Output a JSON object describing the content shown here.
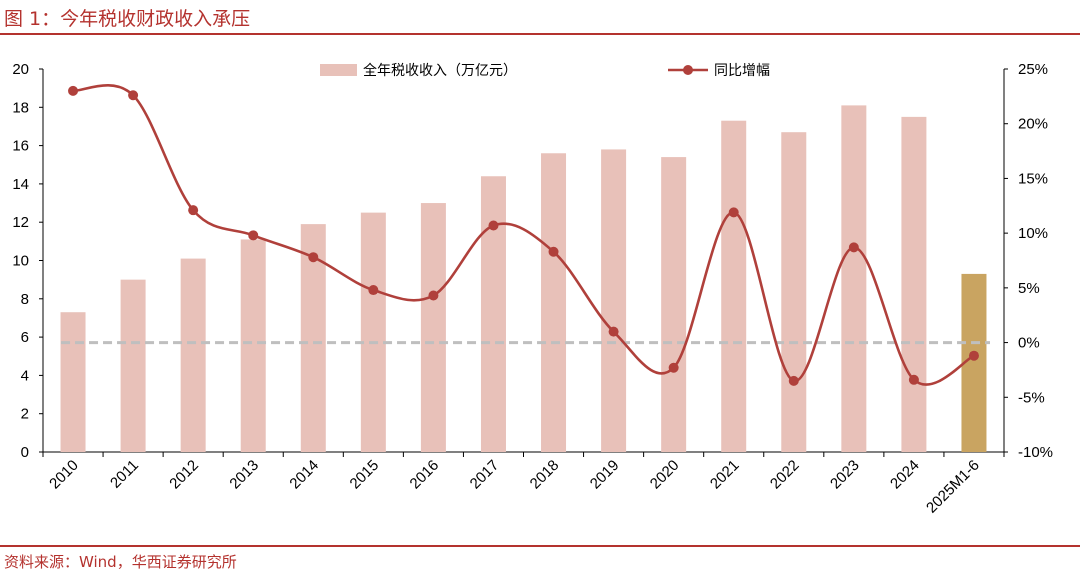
{
  "figure": {
    "title": "图 1：今年税收财政收入承压",
    "source": "资料来源：Wind，华西证券研究所"
  },
  "colors": {
    "bar": "#e8c1b9",
    "bar_highlight": "#c9a461",
    "line": "#b0403b",
    "zero_line": "#bfbfbf",
    "accent": "#b4322e"
  },
  "chart_data": {
    "type": "bar",
    "categories": [
      "2010",
      "2011",
      "2012",
      "2013",
      "2014",
      "2015",
      "2016",
      "2017",
      "2018",
      "2019",
      "2020",
      "2021",
      "2022",
      "2023",
      "2024",
      "2025M1-6"
    ],
    "series": [
      {
        "name": "全年税收收入（万亿元）",
        "type": "bar",
        "axis": "left",
        "values": [
          7.3,
          9.0,
          10.1,
          11.1,
          11.9,
          12.5,
          13.0,
          14.4,
          15.6,
          15.8,
          15.4,
          17.3,
          16.7,
          18.1,
          17.5,
          9.3
        ],
        "highlight_index": 15
      },
      {
        "name": "同比增幅",
        "type": "line",
        "axis": "right",
        "values": [
          23.0,
          22.6,
          12.1,
          9.8,
          7.8,
          4.8,
          4.3,
          10.7,
          8.3,
          1.0,
          -2.3,
          11.9,
          -3.5,
          8.7,
          -3.4,
          -1.2
        ]
      }
    ],
    "y_left": {
      "ylim": [
        0,
        20
      ],
      "ticks": [
        "0",
        "2",
        "4",
        "6",
        "8",
        "10",
        "12",
        "14",
        "16",
        "18",
        "20"
      ]
    },
    "y_right": {
      "ylim": [
        -10,
        25
      ],
      "ticks": [
        "-10%",
        "-5%",
        "0%",
        "5%",
        "10%",
        "15%",
        "20%",
        "25%"
      ]
    },
    "reference_line": {
      "axis": "right",
      "value": 0,
      "style": "dashed"
    },
    "legend": {
      "placement": "top-center"
    },
    "grid": false
  }
}
